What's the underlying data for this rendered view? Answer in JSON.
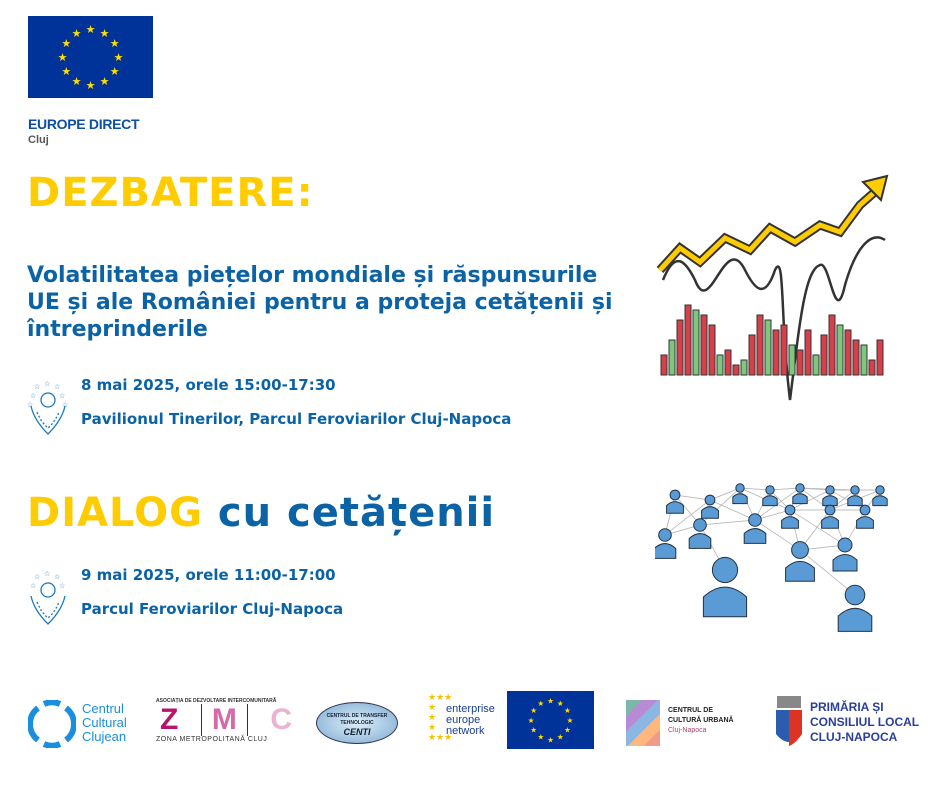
{
  "header": {
    "org_title": "EUROPE DIRECT",
    "org_city": "Cluj"
  },
  "event1": {
    "heading": "DEZBATERE:",
    "subtitle": "Volatilitatea piețelor mondiale și răspunsurile UE și ale României pentru a proteja cetățenii și întreprinderile",
    "date": "8 mai 2025, orele 15:00-17:30",
    "location": "Pavilionul Tinerilor, Parcul Feroviarilor Cluj-Napoca"
  },
  "event2": {
    "heading_highlight": "DIALOG",
    "heading_rest": " cu cetățenii",
    "date": "9 mai 2025, orele 11:00-17:00",
    "location": "Parcul Feroviarilor Cluj-Napoca"
  },
  "partners": {
    "ccc": [
      "Centrul",
      "Cultural",
      "Clujean"
    ],
    "zmc_top": "ASOCIAȚIA DE DEZVOLTARE INTERCOMUNITARĂ",
    "zmc_letters": [
      "Z",
      "M",
      "C"
    ],
    "zmc_bottom": "ZONA METROPOLITANĂ CLUJ",
    "centi": [
      "CENTRUL DE TRANSFER",
      "TEHNOLOGIC",
      "CENTI"
    ],
    "een": [
      "enterprise",
      "europe",
      "network"
    ],
    "ccu": [
      "CENTRUL DE",
      "CULTURĂ URBANĂ",
      "Cluj-Napoca"
    ],
    "primaria": [
      "PRIMĂRIA ȘI",
      "CONSILIUL LOCAL",
      "CLUJ-NAPOCA"
    ]
  },
  "colors": {
    "yellow": "#FFCC00",
    "blue": "#0b63a5",
    "eu_blue": "#003399",
    "eu_star": "#FFDD00"
  }
}
